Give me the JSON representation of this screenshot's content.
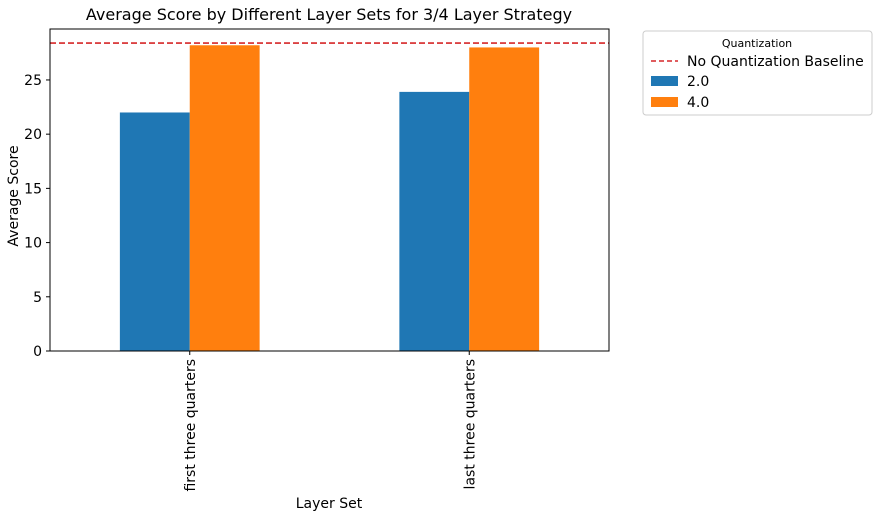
{
  "chart_data": {
    "type": "bar",
    "title": "Average Score by Different Layer Sets for 3/4 Layer Strategy",
    "xlabel": "Layer Set",
    "ylabel": "Average Score",
    "categories": [
      "first three quarters",
      "last three quarters"
    ],
    "series": [
      {
        "name": "2.0",
        "color": "#1f77b4",
        "values": [
          22.0,
          23.9
        ]
      },
      {
        "name": "4.0",
        "color": "#ff7f0e",
        "values": [
          28.2,
          28.0
        ]
      }
    ],
    "baseline": {
      "name": "No Quantization Baseline",
      "value": 28.4,
      "color": "#d62728",
      "style": "dashed"
    },
    "ylim": [
      0,
      29.7
    ],
    "yticks": [
      0,
      5,
      10,
      15,
      20,
      25
    ],
    "legend": {
      "title": "Quantization",
      "placement": "outside-top-right"
    },
    "grid": false
  }
}
